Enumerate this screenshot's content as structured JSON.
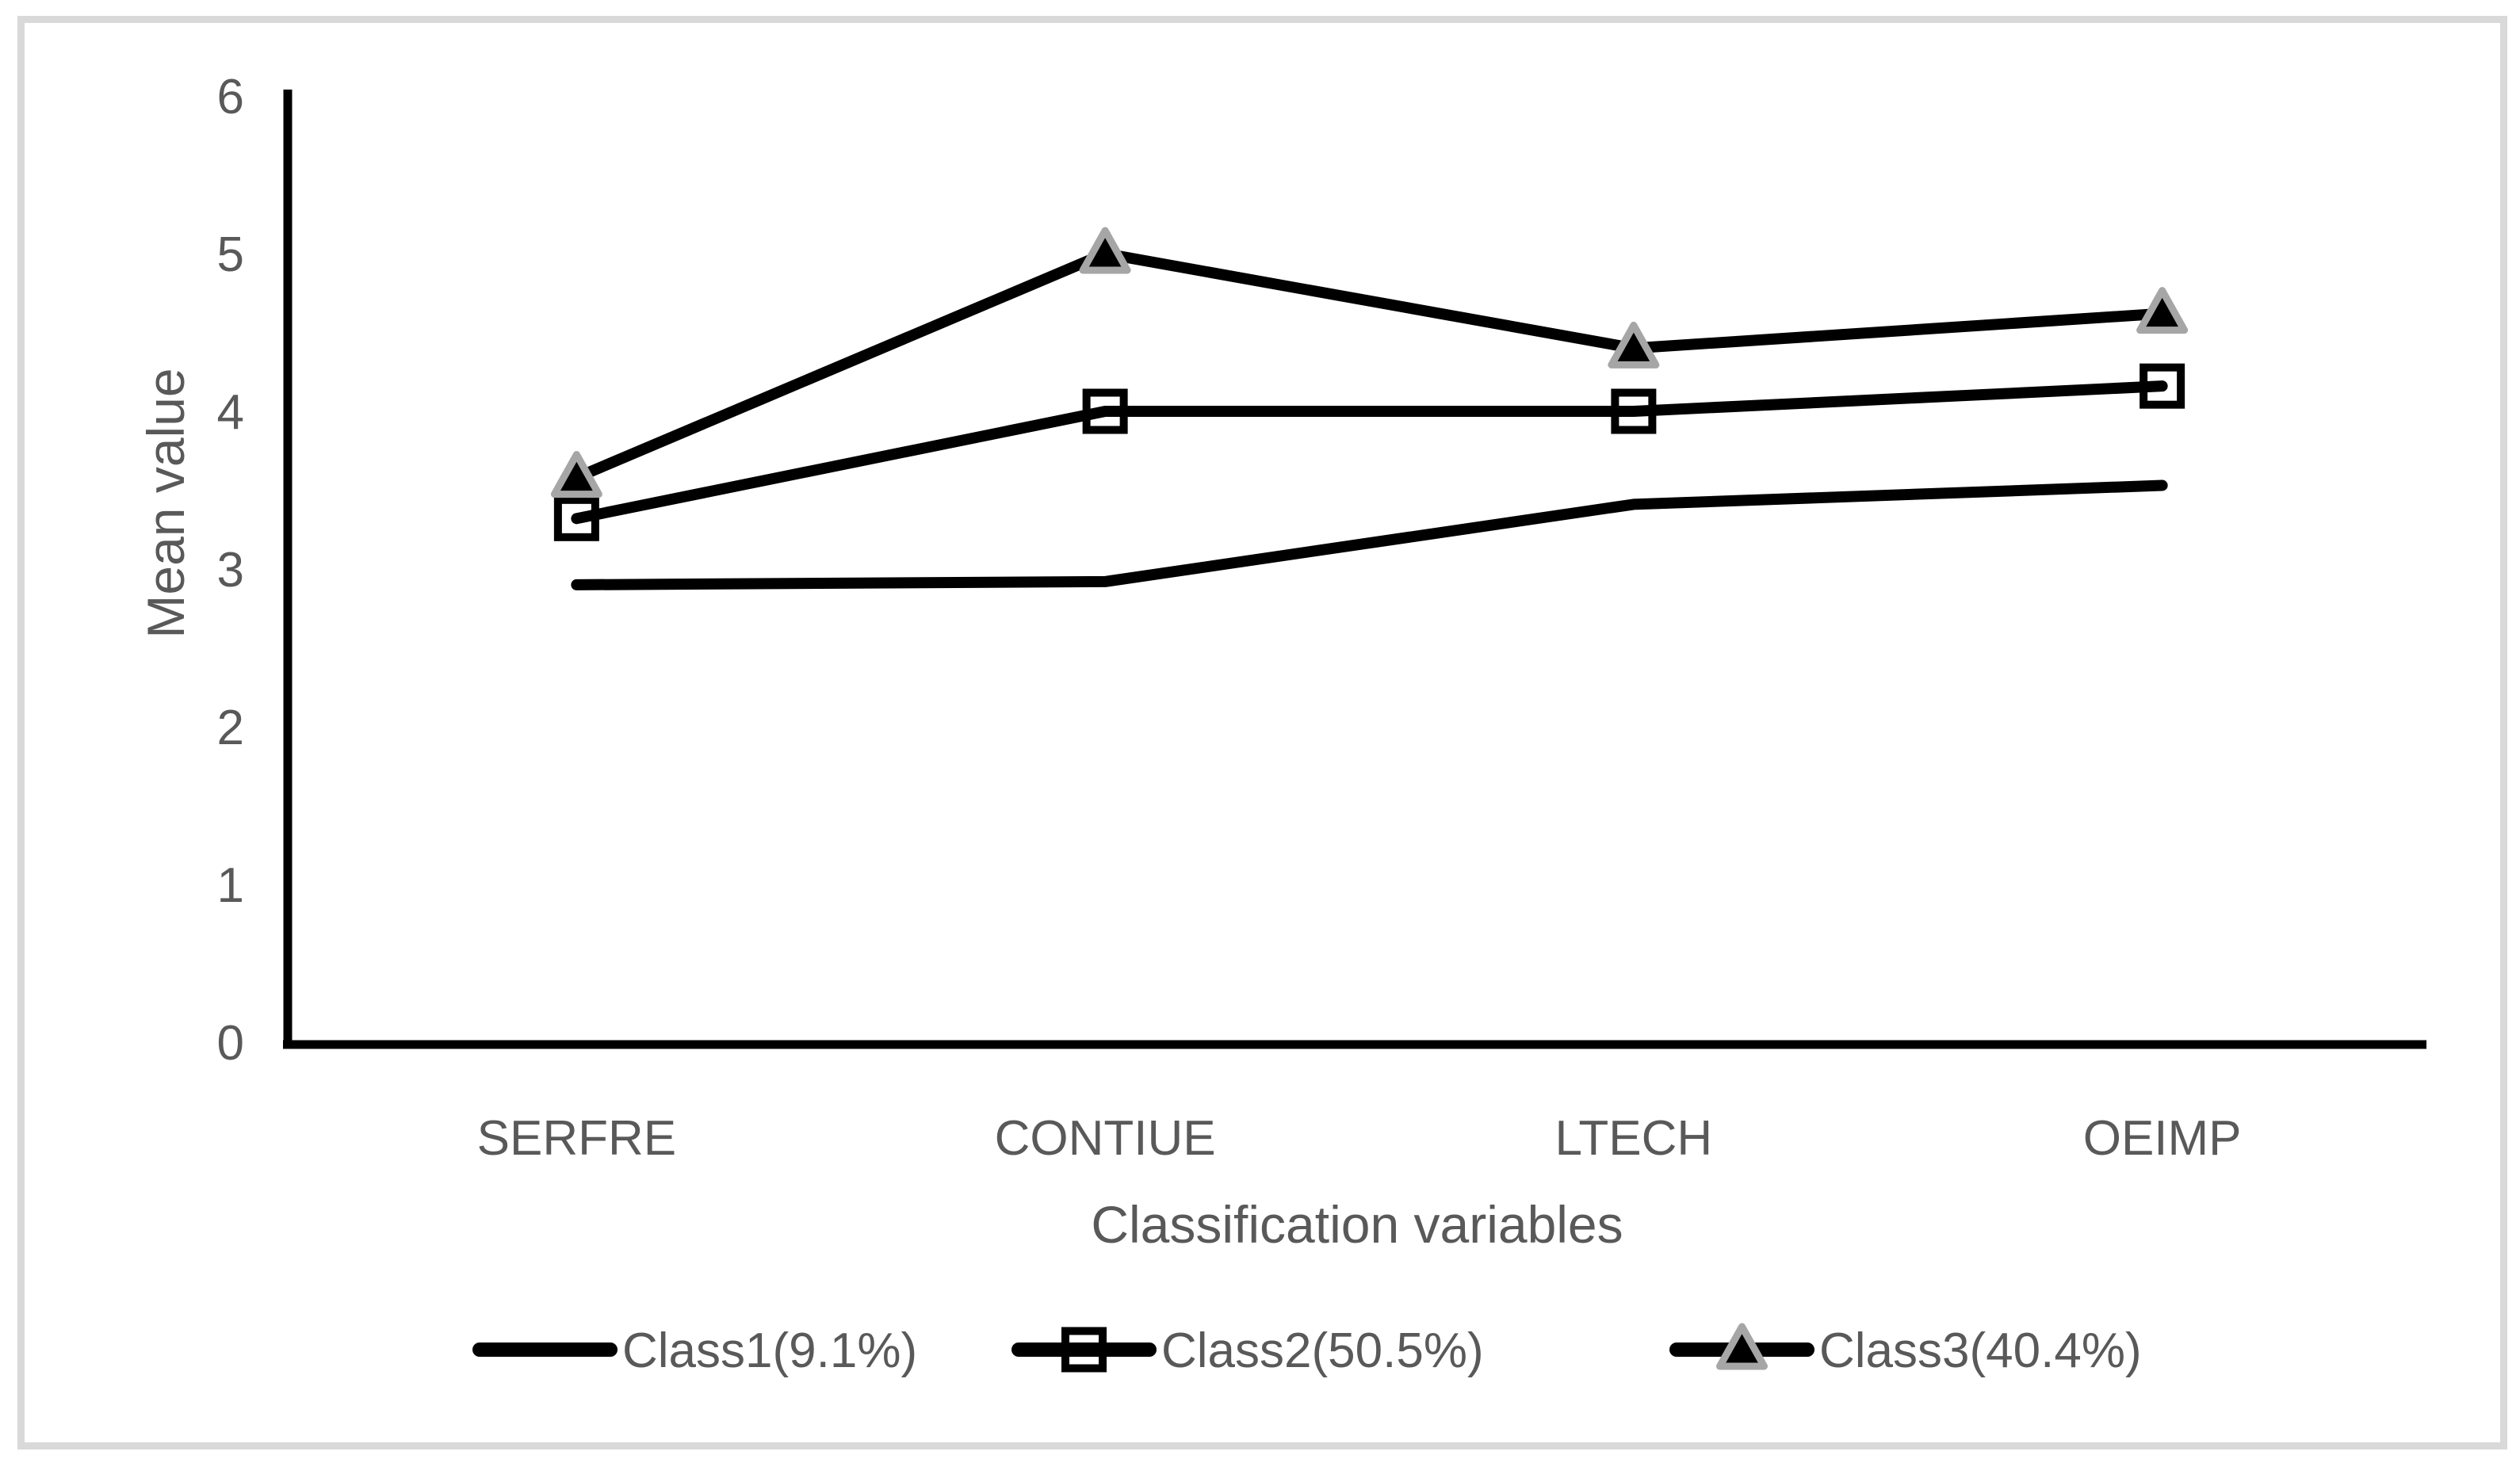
{
  "figure": {
    "background_color": "#ffffff",
    "frame_border_color": "#d9d9d9"
  },
  "chart_data": {
    "type": "line",
    "title": "",
    "xlabel": "Classification variables",
    "ylabel": "Mean value",
    "categories": [
      "SERFRE",
      "CONTIUE",
      "LTECH",
      "OEIMP"
    ],
    "series": [
      {
        "name": "Class1(9.1%)",
        "marker": "none",
        "values": [
          2.9,
          2.92,
          3.41,
          3.53
        ]
      },
      {
        "name": "Class2(50.5%)",
        "marker": "open-square",
        "values": [
          3.32,
          4.0,
          4.0,
          4.16
        ]
      },
      {
        "name": "Class3(40.4%)",
        "marker": "triangle",
        "values": [
          3.58,
          5.0,
          4.4,
          4.62
        ]
      }
    ],
    "ylim": [
      0,
      6
    ],
    "yticks": [
      0,
      1,
      2,
      3,
      4,
      5,
      6
    ],
    "grid": false,
    "legend_position": "bottom",
    "colors": {
      "line": "#000000",
      "axis": "#000000",
      "text": "#595959",
      "triangle_fill": "#000000",
      "triangle_border": "#a6a6a6",
      "square_border": "#000000"
    }
  }
}
